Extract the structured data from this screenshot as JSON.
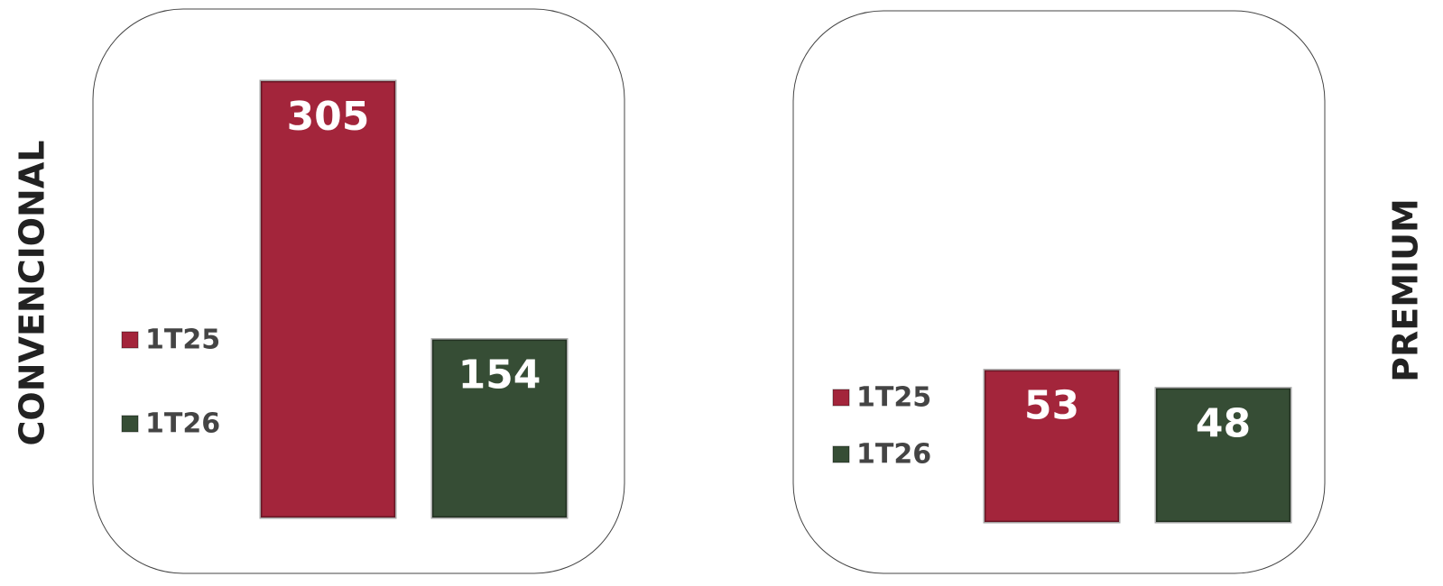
{
  "chart_data": [
    {
      "type": "bar",
      "title": "CONVENCIONAL",
      "categories": [
        null
      ],
      "series": [
        {
          "name": "1T25",
          "color": "#a3253b",
          "values": [
            305
          ]
        },
        {
          "name": "1T26",
          "color": "#364d35",
          "values": [
            154
          ]
        }
      ],
      "ylim": [
        50,
        305
      ]
    },
    {
      "type": "bar",
      "title": "PREMIUM",
      "categories": [
        null
      ],
      "series": [
        {
          "name": "1T25",
          "color": "#a3253b",
          "values": [
            53
          ]
        },
        {
          "name": "1T26",
          "color": "#364d35",
          "values": [
            48
          ]
        }
      ],
      "ylim": [
        11,
        133
      ]
    }
  ]
}
